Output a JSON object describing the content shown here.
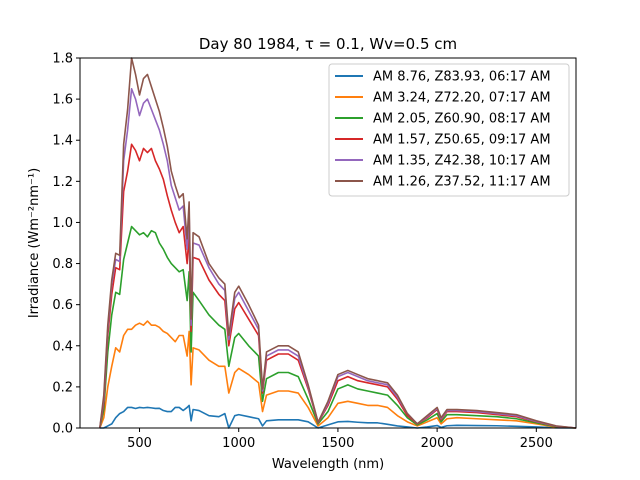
{
  "chart_data": {
    "type": "line",
    "title": "Day 80 1984, τ = 0.1, Wv=0.5 cm",
    "xlabel": "Wavelength (nm)",
    "ylabel": "Irradiance (Wm⁻²nm⁻¹)",
    "xlim": [
      200,
      2700
    ],
    "ylim": [
      0,
      1.8
    ],
    "xticks": [
      500,
      1000,
      1500,
      2000,
      2500
    ],
    "yticks": [
      0.0,
      0.2,
      0.4,
      0.6,
      0.8,
      1.0,
      1.2,
      1.4,
      1.6,
      1.8
    ],
    "x": [
      300,
      320,
      340,
      360,
      380,
      400,
      420,
      440,
      460,
      480,
      500,
      520,
      540,
      560,
      580,
      600,
      620,
      640,
      660,
      680,
      700,
      720,
      740,
      750,
      760,
      770,
      800,
      850,
      900,
      930,
      950,
      980,
      1000,
      1050,
      1100,
      1120,
      1140,
      1200,
      1250,
      1300,
      1350,
      1400,
      1450,
      1500,
      1550,
      1600,
      1650,
      1700,
      1750,
      1800,
      1850,
      1900,
      1950,
      2000,
      2020,
      2050,
      2100,
      2200,
      2300,
      2400,
      2500,
      2600,
      2700
    ],
    "grid": false,
    "legend_position": "top-right",
    "series": [
      {
        "name": "AM 8.76, Z83.93, 06:17 AM",
        "color": "#1f77b4",
        "values": [
          0.0,
          0.0,
          0.01,
          0.02,
          0.05,
          0.07,
          0.08,
          0.1,
          0.1,
          0.095,
          0.1,
          0.098,
          0.1,
          0.098,
          0.095,
          0.096,
          0.085,
          0.08,
          0.08,
          0.1,
          0.1,
          0.085,
          0.1,
          0.11,
          0.035,
          0.09,
          0.085,
          0.06,
          0.055,
          0.07,
          0.0,
          0.06,
          0.065,
          0.055,
          0.045,
          0.01,
          0.035,
          0.04,
          0.04,
          0.04,
          0.03,
          0.0,
          0.015,
          0.03,
          0.032,
          0.028,
          0.025,
          0.025,
          0.018,
          0.01,
          0.005,
          0.0,
          0.005,
          0.012,
          0.003,
          0.011,
          0.013,
          0.012,
          0.011,
          0.008,
          0.005,
          0.001,
          0.0
        ]
      },
      {
        "name": "AM 3.24, Z72.20, 07:17 AM",
        "color": "#ff7f0e",
        "values": [
          0.0,
          0.05,
          0.2,
          0.3,
          0.39,
          0.37,
          0.45,
          0.48,
          0.48,
          0.5,
          0.51,
          0.5,
          0.52,
          0.5,
          0.5,
          0.49,
          0.47,
          0.46,
          0.44,
          0.42,
          0.45,
          0.45,
          0.35,
          0.47,
          0.21,
          0.39,
          0.38,
          0.33,
          0.3,
          0.3,
          0.17,
          0.27,
          0.29,
          0.26,
          0.22,
          0.08,
          0.16,
          0.18,
          0.18,
          0.17,
          0.1,
          0.01,
          0.05,
          0.12,
          0.13,
          0.12,
          0.11,
          0.11,
          0.1,
          0.06,
          0.03,
          0.01,
          0.03,
          0.05,
          0.02,
          0.045,
          0.05,
          0.045,
          0.04,
          0.035,
          0.02,
          0.004,
          0.0
        ]
      },
      {
        "name": "AM 2.05, Z60.90, 08:17 AM",
        "color": "#2ca02c",
        "values": [
          0.0,
          0.09,
          0.37,
          0.55,
          0.66,
          0.65,
          0.82,
          0.9,
          0.98,
          0.96,
          0.94,
          0.95,
          0.93,
          0.96,
          0.95,
          0.9,
          0.87,
          0.83,
          0.8,
          0.78,
          0.76,
          0.77,
          0.62,
          0.76,
          0.37,
          0.66,
          0.62,
          0.55,
          0.5,
          0.48,
          0.3,
          0.44,
          0.46,
          0.4,
          0.35,
          0.13,
          0.24,
          0.27,
          0.27,
          0.25,
          0.14,
          0.02,
          0.08,
          0.19,
          0.21,
          0.19,
          0.18,
          0.17,
          0.16,
          0.11,
          0.05,
          0.015,
          0.04,
          0.07,
          0.03,
          0.065,
          0.065,
          0.06,
          0.055,
          0.045,
          0.025,
          0.006,
          0.0
        ]
      },
      {
        "name": "AM 1.57, Z50.65, 09:17 AM",
        "color": "#d62728",
        "values": [
          0.0,
          0.12,
          0.45,
          0.65,
          0.78,
          0.77,
          1.15,
          1.25,
          1.38,
          1.35,
          1.3,
          1.36,
          1.34,
          1.36,
          1.3,
          1.26,
          1.21,
          1.13,
          1.06,
          1.0,
          0.95,
          0.98,
          0.8,
          0.95,
          0.47,
          0.83,
          0.82,
          0.72,
          0.65,
          0.62,
          0.4,
          0.58,
          0.61,
          0.53,
          0.45,
          0.17,
          0.33,
          0.36,
          0.36,
          0.33,
          0.19,
          0.025,
          0.11,
          0.23,
          0.25,
          0.23,
          0.22,
          0.21,
          0.2,
          0.14,
          0.06,
          0.02,
          0.05,
          0.09,
          0.04,
          0.08,
          0.08,
          0.075,
          0.065,
          0.055,
          0.03,
          0.008,
          0.0
        ]
      },
      {
        "name": "AM 1.35, Z42.38, 10:17 AM",
        "color": "#9467bd",
        "values": [
          0.0,
          0.14,
          0.48,
          0.7,
          0.82,
          0.81,
          1.3,
          1.45,
          1.65,
          1.6,
          1.52,
          1.58,
          1.6,
          1.55,
          1.5,
          1.45,
          1.38,
          1.3,
          1.18,
          1.12,
          1.06,
          1.08,
          0.87,
          1.05,
          0.5,
          0.9,
          0.89,
          0.78,
          0.7,
          0.67,
          0.43,
          0.63,
          0.66,
          0.57,
          0.48,
          0.18,
          0.35,
          0.38,
          0.38,
          0.35,
          0.2,
          0.027,
          0.12,
          0.25,
          0.27,
          0.25,
          0.23,
          0.22,
          0.21,
          0.15,
          0.07,
          0.02,
          0.055,
          0.095,
          0.045,
          0.085,
          0.085,
          0.08,
          0.07,
          0.06,
          0.032,
          0.009,
          0.0
        ]
      },
      {
        "name": "AM 1.26, Z37.52, 11:17 AM",
        "color": "#8c564b",
        "values": [
          0.0,
          0.16,
          0.5,
          0.72,
          0.85,
          0.84,
          1.38,
          1.55,
          1.8,
          1.72,
          1.62,
          1.7,
          1.72,
          1.66,
          1.6,
          1.54,
          1.46,
          1.37,
          1.25,
          1.18,
          1.12,
          1.14,
          0.92,
          1.1,
          0.53,
          0.95,
          0.93,
          0.8,
          0.73,
          0.7,
          0.45,
          0.66,
          0.69,
          0.6,
          0.5,
          0.19,
          0.37,
          0.4,
          0.4,
          0.37,
          0.21,
          0.028,
          0.13,
          0.26,
          0.28,
          0.26,
          0.24,
          0.23,
          0.22,
          0.16,
          0.07,
          0.02,
          0.06,
          0.1,
          0.05,
          0.09,
          0.09,
          0.085,
          0.075,
          0.065,
          0.035,
          0.01,
          0.0
        ]
      }
    ]
  }
}
